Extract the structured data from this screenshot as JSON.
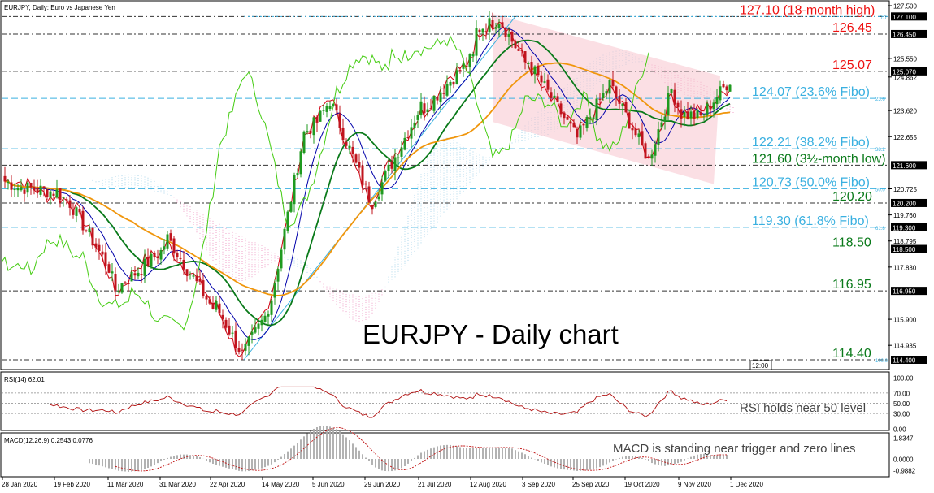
{
  "header": {
    "title": "EURJPY, Daily: Euro vs Japanese Yen"
  },
  "main_label": "EURJPY - Daily chart",
  "rsi_header": "RSI(14) 62.01",
  "macd_header": "MACD(12,26,9) 0.2543 0.0776",
  "rsi_note": "RSI holds near 50 level",
  "macd_note": "MACD is standing near trigger and zero lines",
  "time_box": "12:00",
  "colors": {
    "bull": "#1f9a1f",
    "bear": "#c0141e",
    "sma_fast": "#d00010",
    "sma_mid": "#0000aa",
    "sma_green": "#0a7a1a",
    "sma_orange": "#f0960c",
    "chikou": "#44cc11",
    "cloud_pink": "#f0a0c8",
    "cloud_blue": "#a8d4ea",
    "channel": "#f7c4cd",
    "fibo": "#3ab0e0",
    "level_dark": "#333333",
    "rsi": "#b01010",
    "macd_hist": "#aaaaaa",
    "macd_signal": "#c01010"
  },
  "chart_data": [
    {
      "type": "candlestick",
      "title": "EURJPY, Daily: Euro vs Japanese Yen",
      "ylim": [
        114.4,
        127.5
      ],
      "y_ticks": [
        "127.500",
        "127.100",
        "126.450",
        "125.550",
        "125.070",
        "124.862",
        "123.620",
        "122.655",
        "121.600",
        "120.725",
        "120.200",
        "119.760",
        "119.300",
        "118.795",
        "118.500",
        "117.830",
        "116.950",
        "115.900",
        "114.935",
        "114.400"
      ],
      "x_ticks": [
        "28 Jan 2020",
        "19 Feb 2020",
        "11 Mar 2020",
        "31 Mar 2020",
        "22 Apr 2020",
        "14 May 2020",
        "5 Jun 2020",
        "29 Jun 2020",
        "21 Jul 2020",
        "12 Aug 2020",
        "3 Sep 2020",
        "25 Sep 2020",
        "19 Oct 2020",
        "9 Nov 2020",
        "1 Dec 2020"
      ],
      "close_anchors": [
        {
          "date": "28 Jan 2020",
          "close": 121.0
        },
        {
          "date": "19 Feb 2020",
          "close": 120.6
        },
        {
          "date": "11 Mar 2020",
          "close": 117.8
        },
        {
          "date": "31 Mar 2020",
          "close": 118.4
        },
        {
          "date": "22 Apr 2020",
          "close": 116.3
        },
        {
          "date": "14 May 2020",
          "close": 116.0
        },
        {
          "date": "5 Jun 2020",
          "close": 123.2
        },
        {
          "date": "29 Jun 2020",
          "close": 120.4
        },
        {
          "date": "21 Jul 2020",
          "close": 123.8
        },
        {
          "date": "12 Aug 2020",
          "close": 125.6
        },
        {
          "date": "3 Sep 2020",
          "close": 125.4
        },
        {
          "date": "25 Sep 2020",
          "close": 122.6
        },
        {
          "date": "19 Oct 2020",
          "close": 123.2
        },
        {
          "date": "9 Nov 2020",
          "close": 123.5
        },
        {
          "date": "1 Dec 2020",
          "close": 124.9
        }
      ],
      "annotations": [
        {
          "text": "127.10 (18-month high)",
          "value": 127.1,
          "color": "red"
        },
        {
          "text": "126.45",
          "value": 126.45,
          "color": "red"
        },
        {
          "text": "125.07",
          "value": 125.07,
          "color": "red"
        },
        {
          "text": "124.07 (23.6% Fibo)",
          "value": 124.07,
          "color": "fibo",
          "small": "23.6"
        },
        {
          "text": "122.21 (38.2% Fibo)",
          "value": 122.21,
          "color": "fibo",
          "small": "38.2"
        },
        {
          "text": "121.60 (3½-month low)",
          "value": 121.6,
          "color": "green"
        },
        {
          "text": "120.73 (50.0% Fibo)",
          "value": 120.73,
          "color": "fibo",
          "small": "50.0"
        },
        {
          "text": "120.20",
          "value": 120.2,
          "color": "green"
        },
        {
          "text": "119.30 (61.8% Fibo)",
          "value": 119.3,
          "color": "fibo",
          "small": "61.8"
        },
        {
          "text": "118.50",
          "value": 118.5,
          "color": "green"
        },
        {
          "text": "116.95",
          "value": 116.95,
          "color": "green"
        },
        {
          "text": "114.40",
          "value": 114.4,
          "color": "green",
          "small": "100.0"
        }
      ],
      "fibo_top_small": "0.0"
    },
    {
      "type": "line",
      "title": "RSI(14) 62.01",
      "ylim": [
        0,
        100
      ],
      "y_ticks": [
        "100.00",
        "70.00",
        "50.00",
        "30.00",
        "0.00"
      ],
      "last_value": 62.01
    },
    {
      "type": "bar",
      "title": "MACD(12,26,9) 0.2543 0.0776",
      "ylim": [
        -0.9882,
        1.8347
      ],
      "y_ticks": [
        "1.8347",
        "0.0000",
        "-0.9882"
      ],
      "macd": 0.2543,
      "signal": 0.0776
    }
  ]
}
